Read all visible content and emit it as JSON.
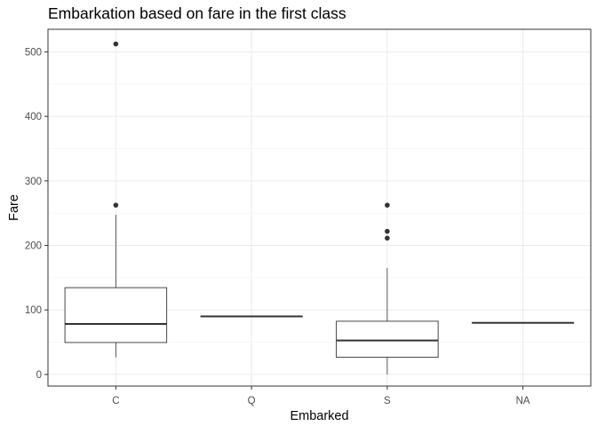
{
  "chart_data": {
    "type": "boxplot",
    "title": "Embarkation based on fare in the first class",
    "xlabel": "Embarked",
    "ylabel": "Fare",
    "categories": [
      "C",
      "Q",
      "S",
      "NA"
    ],
    "ylim": [
      -18,
      535
    ],
    "yticks": [
      0,
      100,
      200,
      300,
      400,
      500
    ],
    "grid": true,
    "boxes": [
      {
        "category": "C",
        "whisker_low": 26.6,
        "q1": 49.5,
        "median": 78.3,
        "q3": 134.5,
        "whisker_high": 247.5,
        "outliers": [
          262.4,
          512.3
        ]
      },
      {
        "category": "Q",
        "whisker_low": 90,
        "q1": 90,
        "median": 90,
        "q3": 90,
        "whisker_high": 90,
        "outliers": []
      },
      {
        "category": "S",
        "whisker_low": 0,
        "q1": 26.6,
        "median": 52.6,
        "q3": 82.5,
        "whisker_high": 164.9,
        "outliers": [
          211.3,
          221.8,
          262.4
        ]
      },
      {
        "category": "NA",
        "whisker_low": 80,
        "q1": 80,
        "median": 80,
        "q3": 80,
        "whisker_high": 80,
        "outliers": []
      }
    ]
  }
}
